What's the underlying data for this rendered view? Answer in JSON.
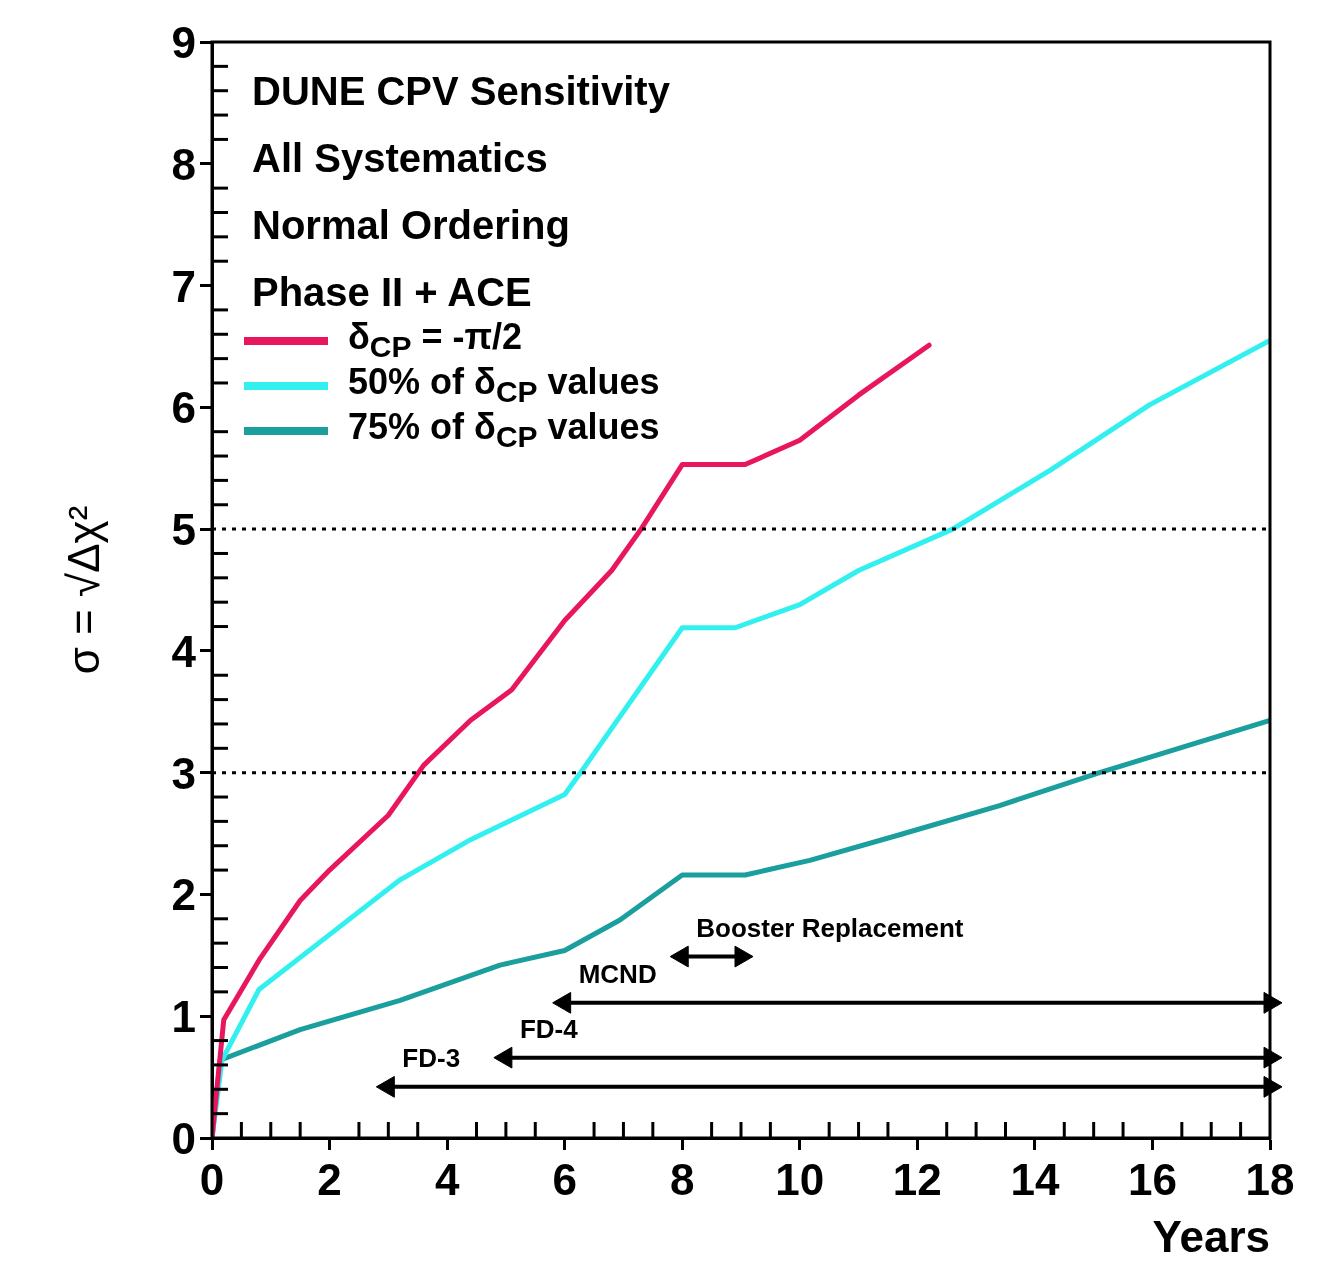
{
  "chart_data": {
    "type": "line",
    "title": "DUNE CPV Sensitivity",
    "subtitle": "All Systematics",
    "annotations": [
      "Normal Ordering",
      "Phase II + ACE",
      {
        "text": "FD-3",
        "x": 3,
        "y": 0.42
      },
      {
        "text": "FD-4",
        "x": 5,
        "y": 0.66
      },
      {
        "text": "MCND",
        "x": 6,
        "y": 1.11
      },
      {
        "text": "Booster Replacement",
        "x": 8,
        "y": 1.49
      }
    ],
    "xlabel": "Years",
    "ylabel": "σ = √Δχ²",
    "xlim": [
      0,
      18
    ],
    "xticks": [
      0,
      2,
      4,
      6,
      8,
      10,
      12,
      14,
      16,
      18
    ],
    "ylim": [
      0,
      9
    ],
    "yticks": [
      0,
      1,
      2,
      3,
      4,
      5,
      6,
      7,
      8,
      9
    ],
    "grid": false,
    "legend": "top left",
    "marker": "none",
    "line_style": "solid",
    "ref_lines": [
      {
        "axis": "y",
        "value": 5,
        "line_style": "dotted",
        "color": "#000000"
      },
      {
        "axis": "y",
        "value": 3,
        "line_style": "dotted",
        "color": "#000000"
      }
    ],
    "series": [
      {
        "name": "δ$_{CP}$ = -π/2",
        "color": "#e8175d",
        "x": [
          0,
          0.2,
          0.8,
          1.5,
          2,
          3,
          3.6,
          4.4,
          5.1,
          6,
          6.8,
          7.3,
          8,
          9.07,
          10,
          11,
          12.2
        ],
        "values": [
          0,
          0.97,
          1.46,
          1.95,
          2.2,
          2.65,
          3.06,
          3.43,
          3.68,
          4.25,
          4.66,
          5,
          5.53,
          5.53,
          5.73,
          6.1,
          6.51
        ]
      },
      {
        "name": "50% of δ$_{CP}$ values",
        "color": "#33f0f0",
        "x": [
          0,
          0.17,
          0.8,
          2,
          3.2,
          4.4,
          6,
          6.3,
          8,
          8.9,
          10,
          11,
          12.6,
          14.25,
          15.95,
          18
        ],
        "values": [
          0,
          0.64,
          1.22,
          1.67,
          2.12,
          2.45,
          2.82,
          3.02,
          4.19,
          4.19,
          4.38,
          4.66,
          5,
          5.48,
          6.02,
          6.55
        ]
      },
      {
        "name": "75% of δ$_{CP}$ values",
        "color": "#1a9e9e",
        "x": [
          0,
          0.14,
          1.5,
          3.2,
          4.9,
          6,
          6.94,
          8,
          9.07,
          10.17,
          11.7,
          13.4,
          15.1,
          18
        ],
        "values": [
          0,
          0.64,
          0.89,
          1.13,
          1.42,
          1.54,
          1.79,
          2.16,
          2.16,
          2.28,
          2.49,
          2.73,
          3,
          3.43
        ]
      },
      {
        "color": "#000000",
        "marker": "triangle",
        "x": [
          3,
          18
        ],
        "values": [
          0.42,
          0.42
        ]
      },
      {
        "color": "#000000",
        "marker": "triangle",
        "x": [
          5,
          18
        ],
        "values": [
          0.66,
          0.66
        ]
      },
      {
        "color": "#000000",
        "marker": "triangle",
        "x": [
          6,
          18
        ],
        "values": [
          1.11,
          1.11
        ]
      },
      {
        "color": "#000000",
        "marker": "triangle",
        "x": [
          8,
          9
        ],
        "values": [
          1.49,
          1.49
        ]
      }
    ]
  }
}
